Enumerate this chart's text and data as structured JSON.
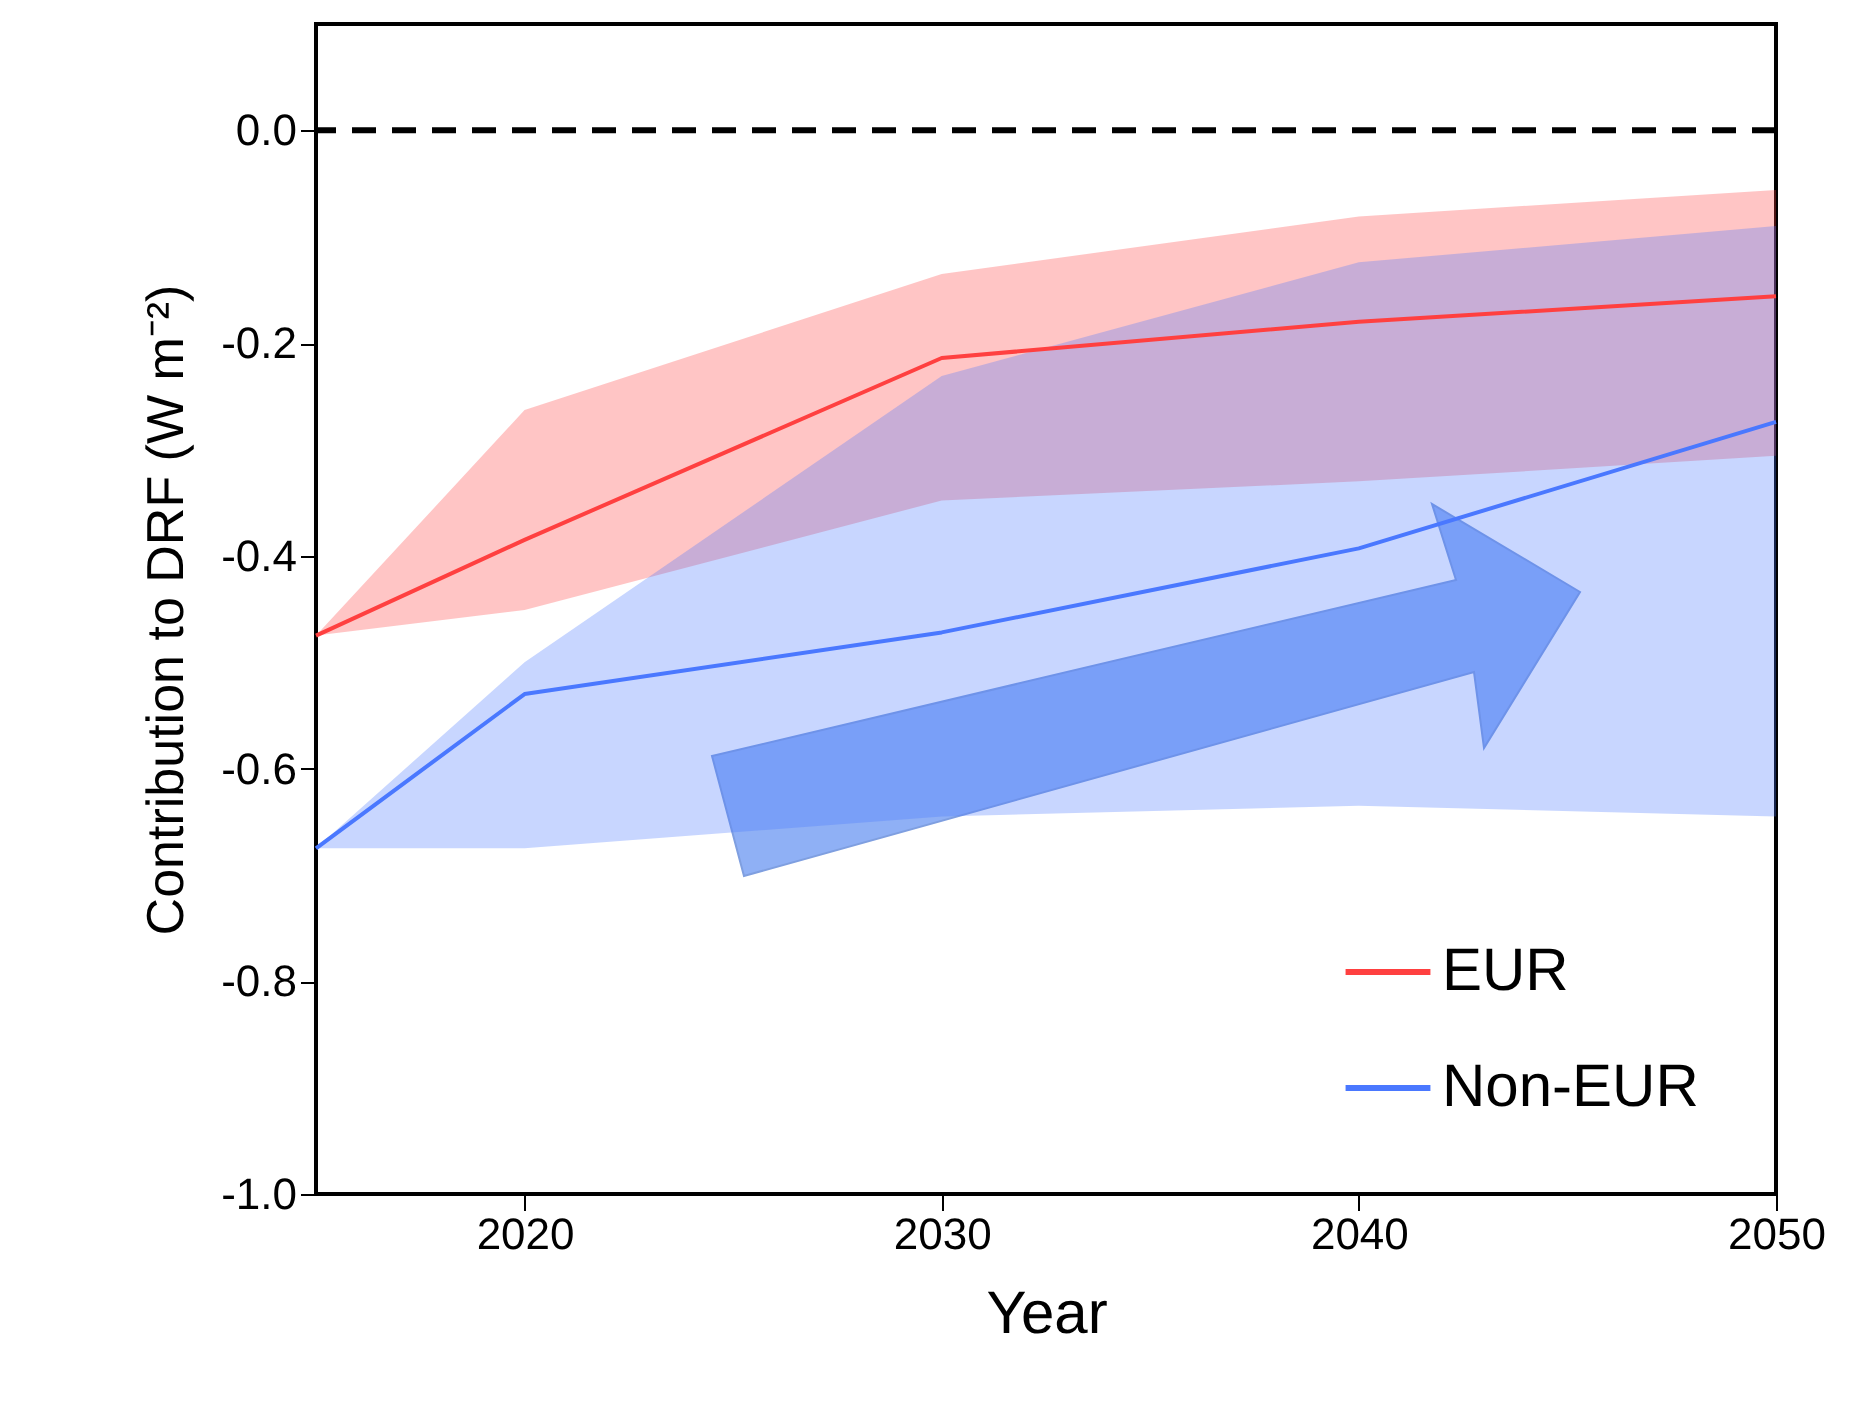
{
  "chart_data": {
    "type": "line",
    "xlabel": "Year",
    "ylabel": "Contribution to DRF (W m⁻²)",
    "x": [
      2015,
      2020,
      2030,
      2040,
      2050
    ],
    "series": [
      {
        "name": "EUR",
        "color": "#ff4040",
        "values": [
          -0.475,
          -0.385,
          -0.214,
          -0.18,
          -0.156
        ],
        "lower": [
          -0.475,
          -0.451,
          -0.348,
          -0.33,
          -0.306
        ],
        "upper": [
          -0.475,
          -0.263,
          -0.135,
          -0.081,
          -0.056
        ]
      },
      {
        "name": "Non-EUR",
        "color": "#4a78ff",
        "values": [
          -0.675,
          -0.53,
          -0.472,
          -0.393,
          -0.274
        ],
        "lower": [
          -0.675,
          -0.675,
          -0.645,
          -0.635,
          -0.645
        ],
        "upper": [
          -0.675,
          -0.5,
          -0.231,
          -0.124,
          -0.09
        ]
      }
    ],
    "xlim": [
      2015,
      2050
    ],
    "xticks": [
      2020,
      2030,
      2040,
      2050
    ],
    "ylim": [
      -1.0,
      0.1
    ],
    "yticks": [
      {
        "value": 0,
        "label": "0.0"
      },
      -0.2,
      -0.4,
      -0.6,
      -0.8,
      {
        "value": -1,
        "label": "-1.0"
      }
    ],
    "ref_lines": [
      {
        "axis": "y",
        "value": 0,
        "color": "#000000",
        "line_style": "dashed"
      }
    ],
    "legend": "bottom right",
    "marker": "none",
    "line_style": "solid",
    "grid": false
  }
}
